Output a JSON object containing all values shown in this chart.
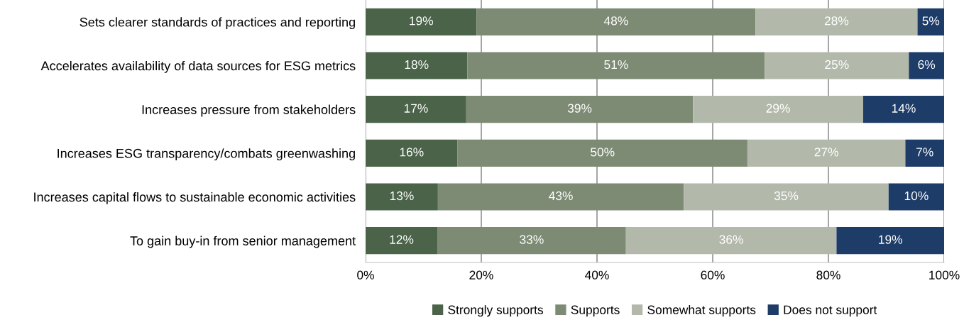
{
  "chart_data": {
    "type": "bar",
    "orientation": "horizontal",
    "stacked": true,
    "categories": [
      "Sets clearer standards of practices and reporting",
      "Accelerates availability of data sources for ESG metrics",
      "Increases pressure from stakeholders",
      "Increases ESG transparency/combats greenwashing",
      "Increases capital flows to sustainable economic activities",
      "To gain buy-in from senior management"
    ],
    "series": [
      {
        "name": "Strongly supports",
        "color": "#4a6349",
        "values": [
          19.2,
          17.6,
          17.4,
          15.9,
          12.5,
          12.4
        ],
        "value_labels": [
          "19%",
          "18%",
          "17%",
          "16%",
          "13%",
          "12%"
        ]
      },
      {
        "name": "Supports",
        "color": "#7d8b74",
        "values": [
          48.2,
          51.4,
          39.2,
          50.1,
          42.5,
          32.6
        ],
        "value_labels": [
          "48%",
          "51%",
          "39%",
          "50%",
          "43%",
          "33%"
        ]
      },
      {
        "name": "Somewhat supports",
        "color": "#b3b9aa",
        "values": [
          28.0,
          24.9,
          29.4,
          27.3,
          35.4,
          36.4
        ],
        "value_labels": [
          "28%",
          "25%",
          "29%",
          "27%",
          "35%",
          "36%"
        ]
      },
      {
        "name": "Does not support",
        "color": "#1d3c68",
        "values": [
          4.6,
          6.1,
          14.0,
          6.7,
          9.6,
          18.6
        ],
        "value_labels": [
          "5%",
          "6%",
          "14%",
          "7%",
          "10%",
          "19%"
        ]
      }
    ],
    "xlim": [
      0,
      100
    ],
    "xticks": [
      {
        "value": 0,
        "label": "0%"
      },
      {
        "value": 20,
        "label": "20%"
      },
      {
        "value": 40,
        "label": "40%"
      },
      {
        "value": 60,
        "label": "60%"
      },
      {
        "value": 80,
        "label": "80%"
      },
      {
        "value": 100,
        "label": "100%"
      }
    ],
    "grid": "x",
    "legend": "bottom"
  }
}
